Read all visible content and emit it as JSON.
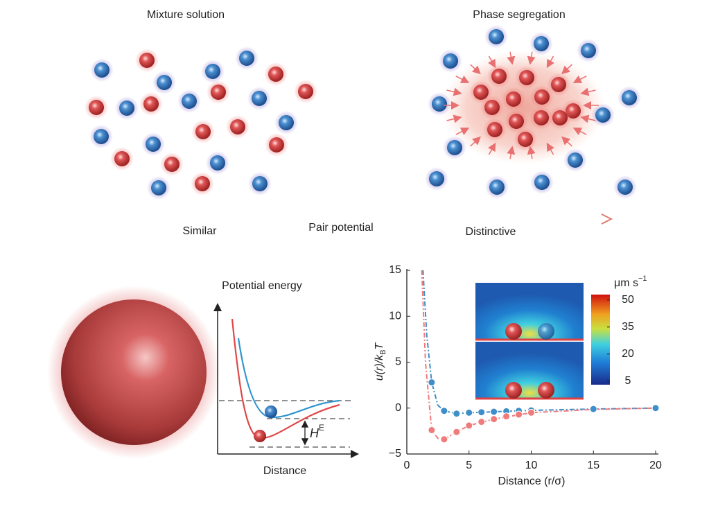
{
  "top": {
    "left_title": "Mixture solution",
    "right_title": "Phase segregation",
    "arrow_labels": [
      "Similar",
      "Pair potential",
      "Distinctive"
    ]
  },
  "schematic": {
    "y_label": "Potential energy",
    "x_label": "Distance",
    "gap_label": "H",
    "gap_label_sup": "E"
  },
  "chart_data": {
    "type": "line",
    "x_label": "Distance (r/σ)",
    "y_label": "u(r)/k",
    "y_label_sub": "B",
    "y_label_end": "T",
    "xlim": [
      0,
      20
    ],
    "ylim": [
      -5,
      15
    ],
    "xticks": [
      0,
      5,
      10,
      15,
      20
    ],
    "yticks": [
      {
        "value": -5,
        "label": "−5"
      },
      0,
      5,
      10,
      15
    ],
    "series": [
      {
        "color": "#3d8ec9",
        "style": "dashdot",
        "x": [
          1.3,
          1.6,
          2,
          2.5,
          3,
          4,
          5,
          7,
          10,
          15,
          20
        ],
        "values": [
          15,
          8,
          2.8,
          0.3,
          -0.3,
          -0.6,
          -0.5,
          -0.4,
          -0.25,
          -0.1,
          0
        ]
      },
      {
        "color": "#ef7b7b",
        "style": "dashdot",
        "x": [
          1.2,
          1.5,
          2,
          2.5,
          3,
          4,
          5,
          7,
          10,
          15,
          20
        ],
        "values": [
          15,
          5,
          -2.4,
          -3.3,
          -3.4,
          -2.6,
          -1.9,
          -1.2,
          -0.5,
          -0.15,
          0
        ]
      },
      {
        "color": "#3d8ec9",
        "style": "points",
        "x": [
          2,
          3,
          4,
          5,
          6,
          7,
          8,
          9,
          10,
          15,
          20
        ],
        "values": [
          2.8,
          -0.3,
          -0.6,
          -0.5,
          -0.45,
          -0.4,
          -0.35,
          -0.3,
          -0.25,
          -0.1,
          0
        ]
      },
      {
        "color": "#ef7b7b",
        "style": "points",
        "x": [
          2,
          3,
          4,
          5,
          6,
          7,
          8,
          9,
          10
        ],
        "values": [
          -2.4,
          -3.4,
          -2.6,
          -1.9,
          -1.5,
          -1.2,
          -0.9,
          -0.7,
          -0.5
        ]
      }
    ],
    "colorbar": {
      "label": "μm s",
      "label_sup": "−1",
      "lim": [
        3,
        53
      ],
      "ticks": [
        50,
        35,
        20,
        5
      ]
    }
  }
}
